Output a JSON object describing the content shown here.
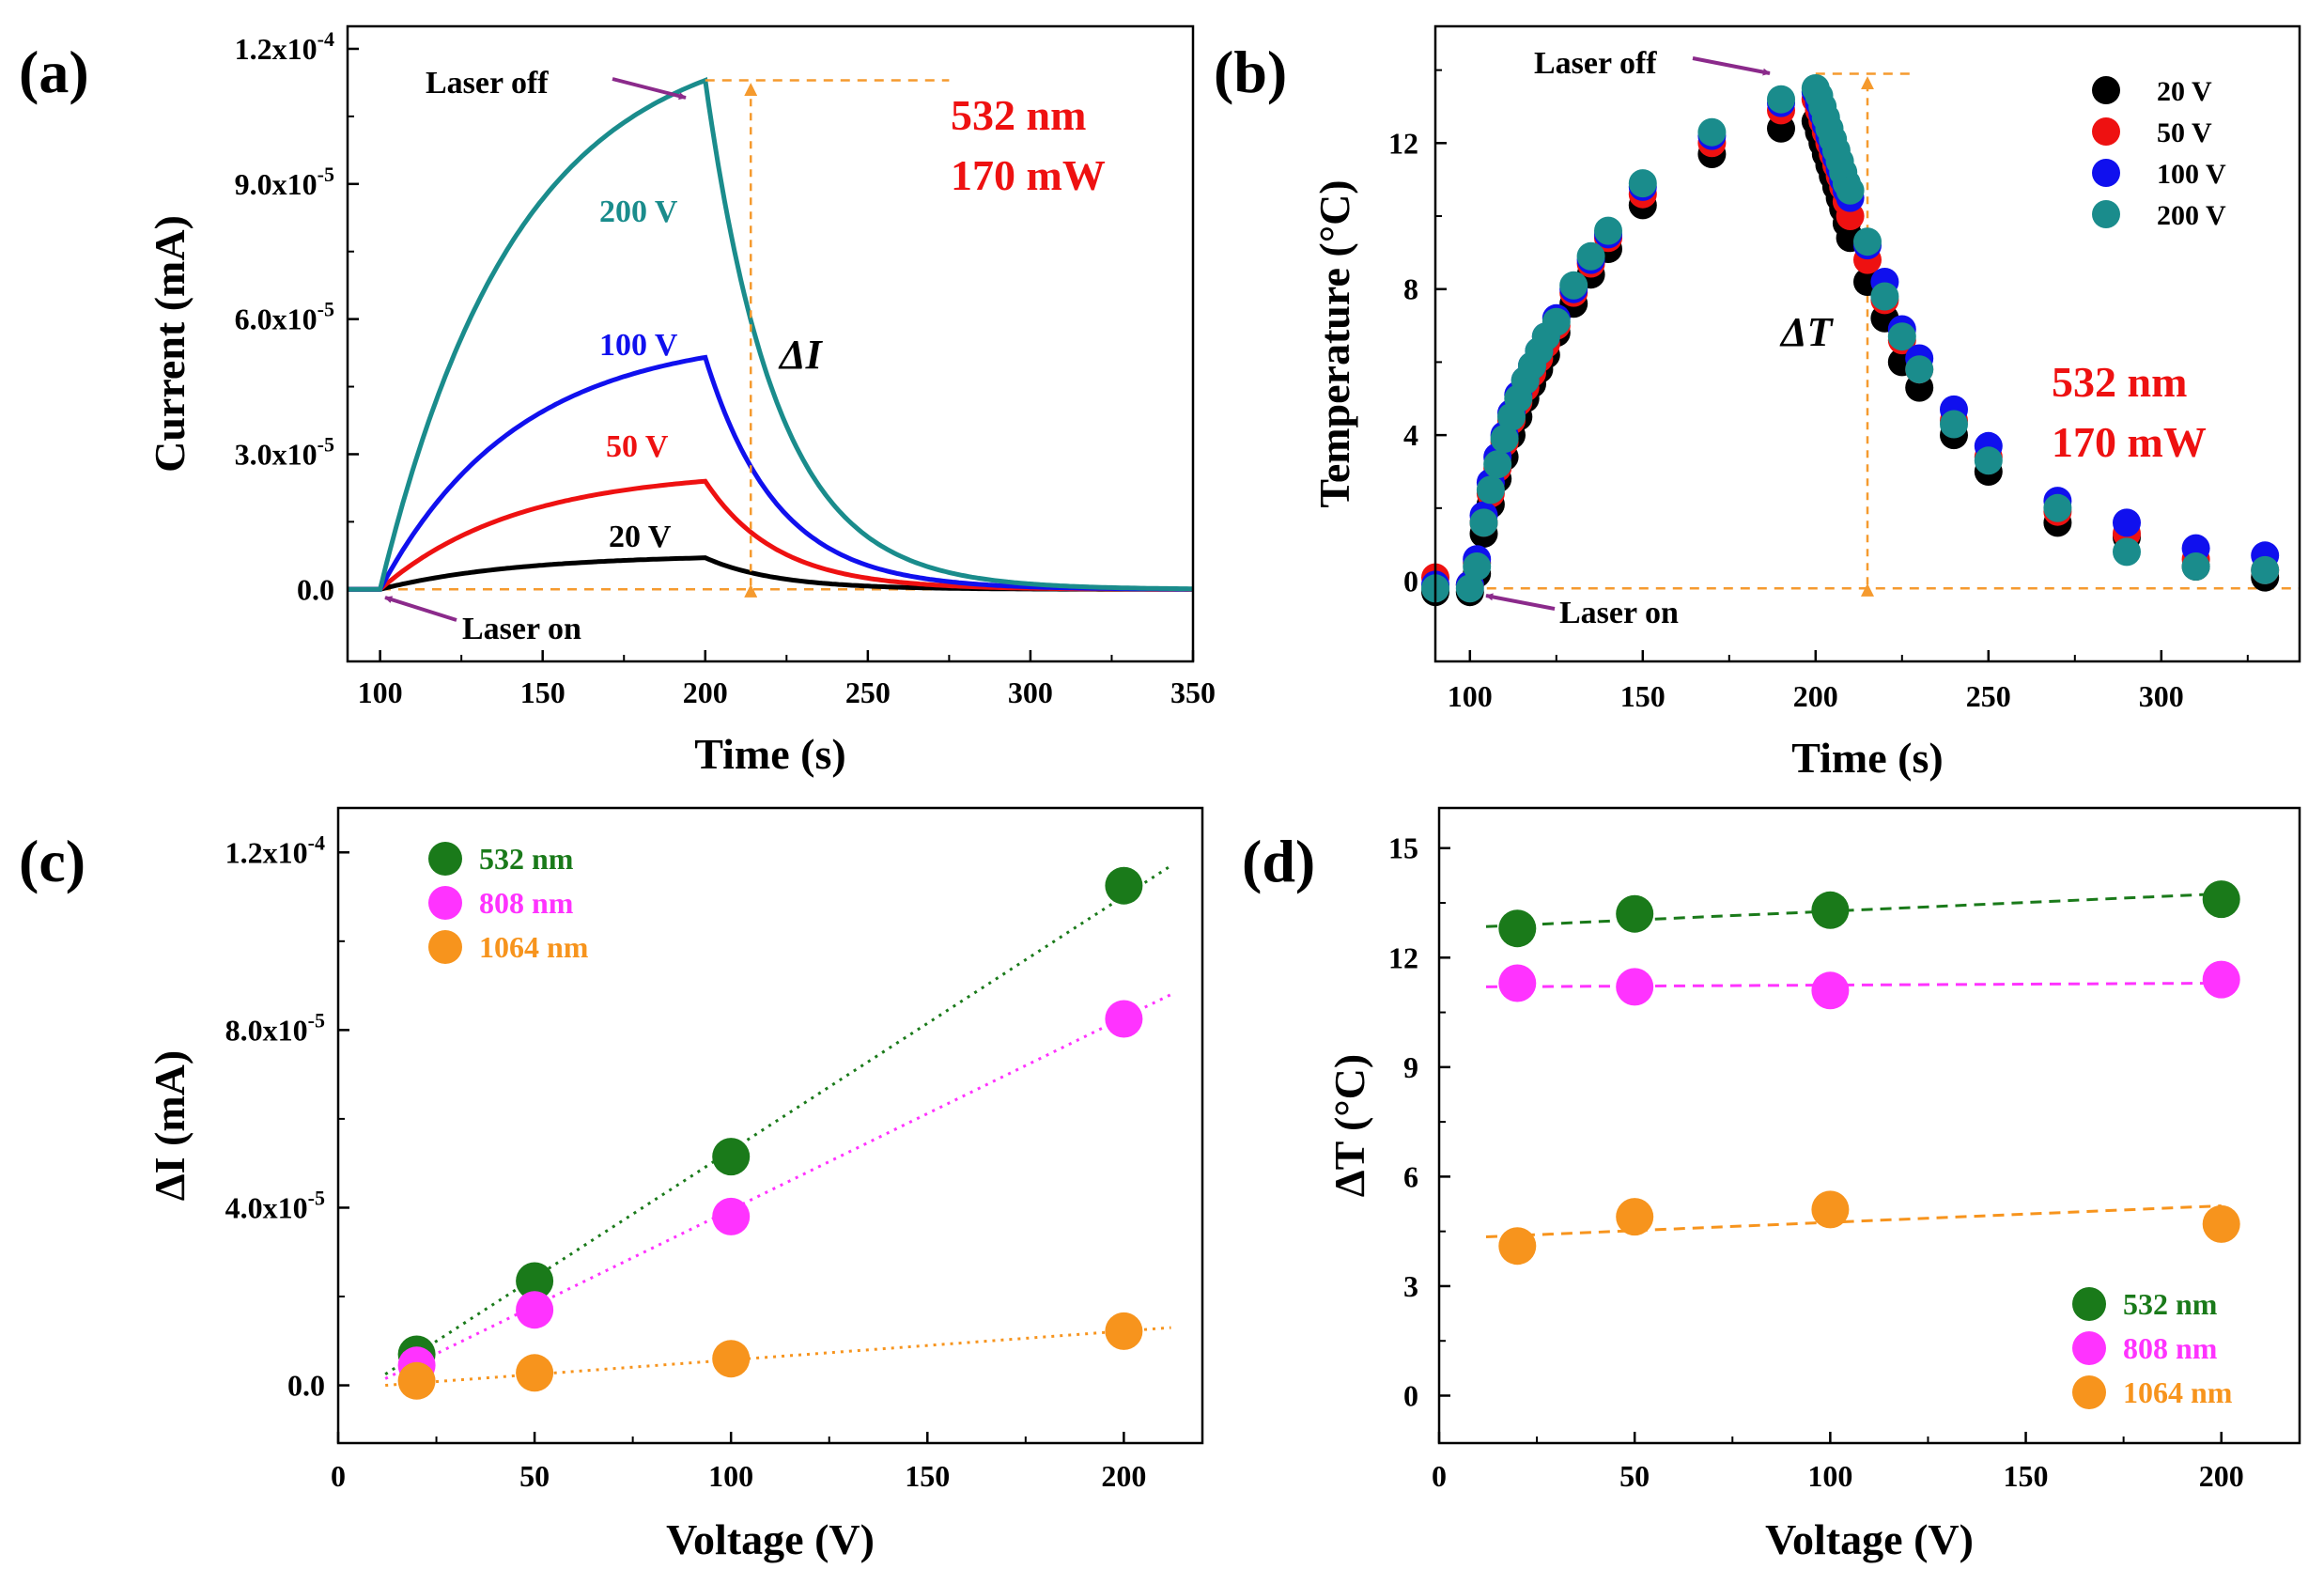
{
  "colors": {
    "green": "#1a7a1a",
    "magenta": "#ff33ff",
    "orange": "#f7941d",
    "teal": "#1a8c8c",
    "blue": "#1010ee",
    "red": "#ee1111",
    "black": "#000000",
    "purple": "#8b2a8b",
    "guide": "#f59a2e",
    "annot_red": "#ee1111"
  },
  "chart_data": [
    {
      "id": "a",
      "panel_label": "(a)",
      "type": "line",
      "xlabel": "Time (s)",
      "ylabel": "Current (mA)",
      "xlim": [
        90,
        350
      ],
      "ylim": [
        -1.6e-05,
        0.000125
      ],
      "xticks": [
        "100",
        "150",
        "200",
        "250",
        "300",
        "350"
      ],
      "yticks": [
        {
          "mant": "0.0",
          "exp": ""
        },
        {
          "mant": "3.0x10",
          "exp": "-5"
        },
        {
          "mant": "6.0x10",
          "exp": "-5"
        },
        {
          "mant": "9.0x10",
          "exp": "-5"
        },
        {
          "mant": "1.2x10",
          "exp": "-4"
        }
      ],
      "series": [
        {
          "name": "20 V",
          "peak": 7e-06,
          "label": "20 V"
        },
        {
          "name": "50 V",
          "peak": 2.4e-05,
          "label": "50 V"
        },
        {
          "name": "100 V",
          "peak": 5.15e-05,
          "label": "100 V"
        },
        {
          "name": "200 V",
          "peak": 0.000113,
          "label": "200 V"
        }
      ],
      "laser_on_s": 100,
      "laser_off_s": 200,
      "annotations": {
        "laser_off": "Laser off",
        "laser_on": "Laser on",
        "delta": "ΔI",
        "line1": "532 nm",
        "line2": "170 mW"
      }
    },
    {
      "id": "b",
      "panel_label": "(b)",
      "type": "scatter",
      "xlabel": "Time (s)",
      "ylabel": "Temperature (°C)",
      "xlim": [
        90,
        340
      ],
      "ylim": [
        -2.2,
        15.2
      ],
      "xticks": [
        "100",
        "150",
        "200",
        "250",
        "300"
      ],
      "yticks": [
        "0",
        "4",
        "8",
        "12"
      ],
      "x": [
        90,
        100,
        102,
        104,
        106,
        108,
        110,
        112,
        114,
        116,
        118,
        120,
        122,
        125,
        130,
        135,
        140,
        150,
        170,
        190,
        200,
        201,
        202,
        203,
        204,
        205,
        206,
        207,
        208,
        209,
        210,
        215,
        220,
        225,
        230,
        240,
        250,
        270,
        290,
        310,
        330
      ],
      "series": [
        {
          "name": "20 V",
          "values": [
            -0.3,
            -0.3,
            0.2,
            1.3,
            2.1,
            2.8,
            3.4,
            4.0,
            4.5,
            5.0,
            5.4,
            5.8,
            6.2,
            6.8,
            7.6,
            8.4,
            9.1,
            10.3,
            11.7,
            12.4,
            12.6,
            12.3,
            12.0,
            11.7,
            11.4,
            11.1,
            10.8,
            10.5,
            10.2,
            9.8,
            9.4,
            8.2,
            7.2,
            6.0,
            5.3,
            4.0,
            3.0,
            1.6,
            1.2,
            0.4,
            0.1
          ]
        },
        {
          "name": "50 V",
          "values": [
            0.1,
            -0.1,
            0.5,
            1.6,
            2.4,
            3.1,
            3.8,
            4.4,
            4.9,
            5.3,
            5.7,
            6.1,
            6.5,
            7.0,
            7.9,
            8.7,
            9.4,
            10.6,
            12.0,
            12.9,
            13.2,
            12.9,
            12.6,
            12.3,
            12.0,
            11.7,
            11.4,
            11.1,
            10.8,
            10.4,
            10.0,
            8.8,
            7.7,
            6.6,
            5.8,
            4.4,
            3.4,
            1.9,
            1.3,
            0.6,
            0.3
          ]
        },
        {
          "name": "100 V",
          "values": [
            -0.1,
            -0.1,
            0.6,
            1.8,
            2.7,
            3.4,
            4.0,
            4.6,
            5.1,
            5.5,
            5.9,
            6.3,
            6.7,
            7.2,
            8.0,
            8.8,
            9.5,
            10.8,
            12.2,
            13.1,
            13.4,
            13.1,
            12.8,
            12.5,
            12.2,
            11.9,
            11.6,
            11.3,
            11.0,
            10.7,
            10.5,
            9.2,
            8.2,
            6.9,
            6.1,
            4.7,
            3.7,
            2.2,
            1.6,
            0.9,
            0.7
          ]
        },
        {
          "name": "200 V",
          "values": [
            -0.2,
            -0.2,
            0.4,
            1.6,
            2.5,
            3.2,
            3.9,
            4.5,
            5.0,
            5.5,
            5.9,
            6.3,
            6.7,
            7.1,
            8.1,
            8.9,
            9.6,
            10.9,
            12.3,
            13.2,
            13.5,
            13.3,
            13.0,
            12.7,
            12.4,
            12.1,
            11.8,
            11.5,
            11.2,
            10.9,
            10.7,
            9.3,
            7.8,
            6.7,
            5.8,
            4.3,
            3.3,
            2.0,
            0.8,
            0.4,
            0.3
          ]
        }
      ],
      "legend": [
        "20 V",
        "50 V",
        "100 V",
        "200 V"
      ],
      "legend_position": "top-right",
      "annotations": {
        "laser_off": "Laser off",
        "laser_on": "Laser on",
        "delta": "ΔT",
        "line1": "532 nm",
        "line2": "170 mW"
      }
    },
    {
      "id": "c",
      "panel_label": "(c)",
      "type": "scatter",
      "xlabel": "Voltage (V)",
      "ylabel": "ΔI (mA)",
      "xlim": [
        0,
        220
      ],
      "ylim": [
        -1.3e-05,
        0.00013
      ],
      "xticks": [
        "0",
        "50",
        "100",
        "150",
        "200"
      ],
      "yticks": [
        {
          "mant": "0.0",
          "exp": ""
        },
        {
          "mant": "4.0x10",
          "exp": "-5"
        },
        {
          "mant": "8.0x10",
          "exp": "-5"
        },
        {
          "mant": "1.2x10",
          "exp": "-4"
        }
      ],
      "x": [
        20,
        50,
        100,
        200
      ],
      "series": [
        {
          "name": "532 nm",
          "values": [
            7e-06,
            2.35e-05,
            5.15e-05,
            0.0001125
          ],
          "fit": [
            [
              12,
              2.5e-06
            ],
            [
              212,
              0.000117
            ]
          ]
        },
        {
          "name": "808 nm",
          "values": [
            4.5e-06,
            1.7e-05,
            3.8e-05,
            8.25e-05
          ],
          "fit": [
            [
              12,
              1.5e-06
            ],
            [
              212,
              8.8e-05
            ]
          ]
        },
        {
          "name": "1064 nm",
          "values": [
            1e-06,
            2.8e-06,
            6e-06,
            1.22e-05
          ],
          "fit": [
            [
              12,
              0.0
            ],
            [
              212,
              1.3e-05
            ]
          ]
        }
      ],
      "legend": [
        "532 nm",
        "808 nm",
        "1064 nm"
      ],
      "legend_position": "top-left"
    },
    {
      "id": "d",
      "panel_label": "(d)",
      "type": "scatter",
      "xlabel": "Voltage (V)",
      "ylabel": "ΔT (°C)",
      "xlim": [
        0,
        220
      ],
      "ylim": [
        -1.3,
        16.1
      ],
      "xticks": [
        "0",
        "50",
        "100",
        "150",
        "200"
      ],
      "yticks": [
        "0",
        "3",
        "6",
        "9",
        "12",
        "15"
      ],
      "x": [
        20,
        50,
        100,
        200
      ],
      "series": [
        {
          "name": "532 nm",
          "values": [
            12.8,
            13.2,
            13.3,
            13.6
          ],
          "fit": [
            [
              12,
              12.85
            ],
            [
              200,
              13.75
            ]
          ]
        },
        {
          "name": "808 nm",
          "values": [
            11.3,
            11.2,
            11.1,
            11.4
          ],
          "fit": [
            [
              12,
              11.2
            ],
            [
              200,
              11.3
            ]
          ]
        },
        {
          "name": "1064 nm",
          "values": [
            4.1,
            4.9,
            5.1,
            4.7
          ],
          "fit": [
            [
              12,
              4.35
            ],
            [
              200,
              5.2
            ]
          ]
        }
      ],
      "legend": [
        "532 nm",
        "808 nm",
        "1064 nm"
      ],
      "legend_position": "bottom-right"
    }
  ]
}
